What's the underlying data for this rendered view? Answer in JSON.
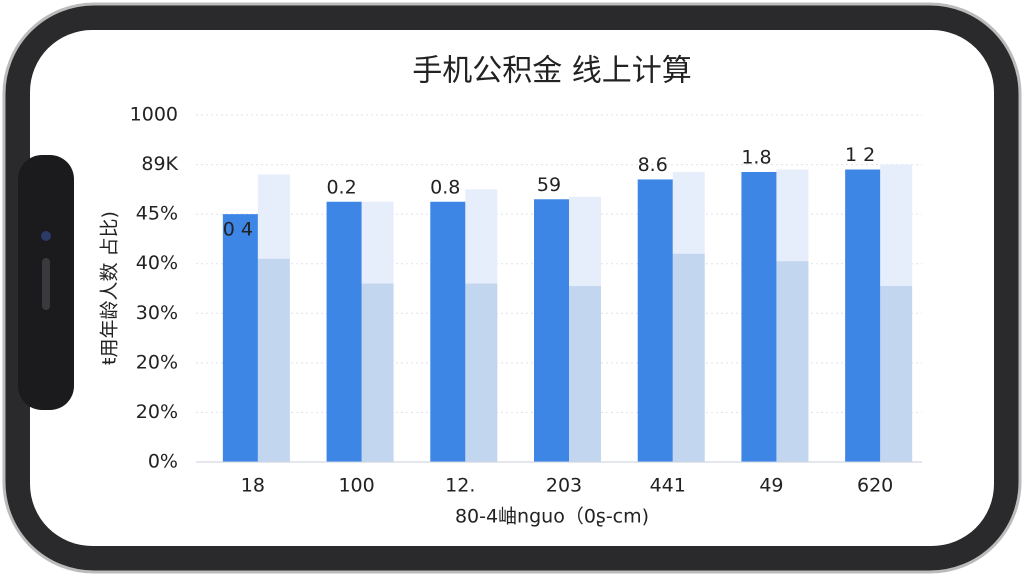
{
  "chart_data": {
    "type": "bar",
    "title": "手机公积金  线上计算",
    "y_label": "ŧ用年龄人数 占比)",
    "x_label": "80-4岫nguo（0ʂ-cm)",
    "categories": [
      "18",
      "100",
      "12.",
      "203",
      "441",
      "49",
      "620"
    ],
    "series": [
      {
        "color": "#3d86e6",
        "values": [
          5.0,
          5.25,
          5.25,
          5.3,
          5.7,
          5.85,
          5.9
        ]
      },
      {
        "color": "#e6eefb",
        "values": [
          5.8,
          5.25,
          5.5,
          5.35,
          5.85,
          5.9,
          6.0
        ]
      },
      {
        "color": "#c3d6f0",
        "values": [
          4.1,
          3.6,
          3.6,
          3.55,
          4.2,
          4.05,
          3.55
        ]
      }
    ],
    "annotations": [
      "0 4",
      "0.2",
      "0.8",
      "59",
      "8.6",
      "1.8",
      "1 2"
    ],
    "ylim": [
      0,
      7
    ],
    "yticks": [
      {
        "value": 0,
        "label": "0%"
      },
      {
        "value": 1,
        "label": "20%"
      },
      {
        "value": 2,
        "label": "20%"
      },
      {
        "value": 3,
        "label": "30%"
      },
      {
        "value": 4,
        "label": "40%"
      },
      {
        "value": 5,
        "label": "45%"
      },
      {
        "value": 6,
        "label": "89K"
      },
      {
        "value": 7,
        "label": "1000"
      }
    ],
    "grid": true
  }
}
